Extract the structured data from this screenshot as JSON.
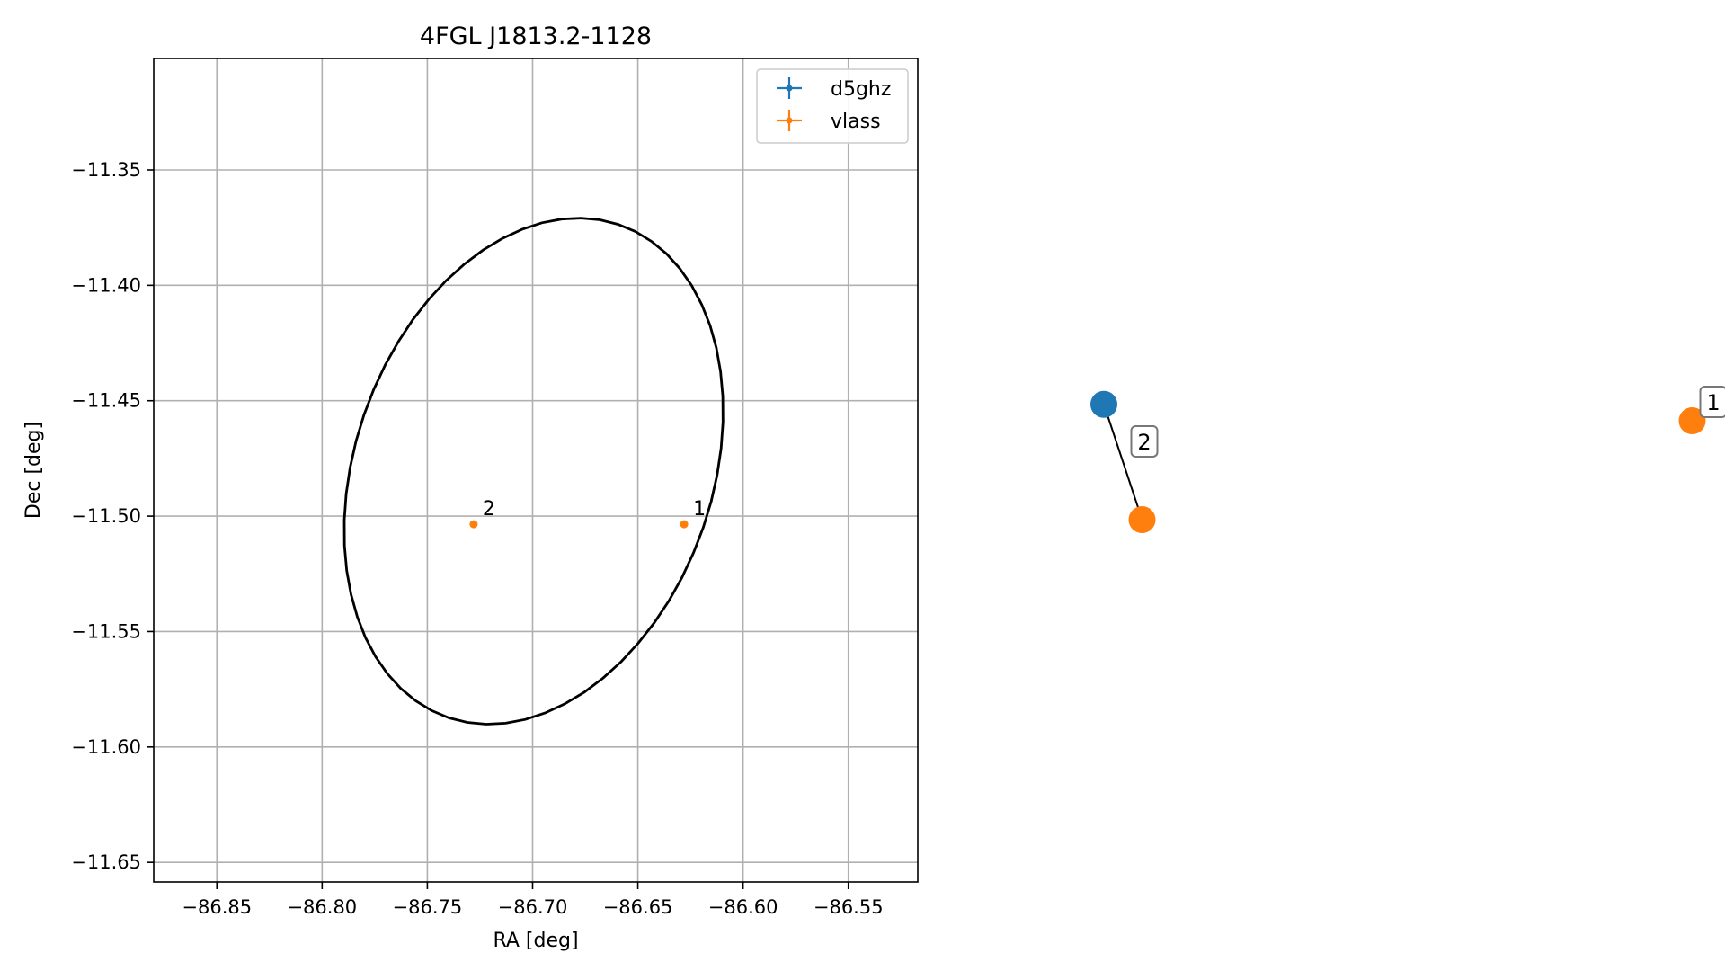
{
  "chart_data": [
    {
      "type": "scatter",
      "title": "4FGL J1813.2-1128",
      "xlabel": "RA [deg]",
      "ylabel": "Dec [deg]",
      "xlim": [
        -86.88,
        -86.517
      ],
      "ylim": [
        -11.6585,
        -11.3017
      ],
      "x_ticks": [
        -86.85,
        -86.8,
        -86.75,
        -86.7,
        -86.65,
        -86.6,
        -86.55
      ],
      "y_ticks": [
        -11.35,
        -11.4,
        -11.45,
        -11.5,
        -11.55,
        -11.6,
        -11.65
      ],
      "x_tick_labels": [
        "−86.85",
        "−86.80",
        "−86.75",
        "−86.70",
        "−86.65",
        "−86.60",
        "−86.55"
      ],
      "y_tick_labels": [
        "−11.35",
        "−11.40",
        "−11.45",
        "−11.50",
        "−11.55",
        "−11.60",
        "−11.65"
      ],
      "grid": true,
      "legend_position": "top-right",
      "legend": [
        {
          "name": "d5ghz",
          "color": "#1f77b4"
        },
        {
          "name": "vlass",
          "color": "#ff7f0e"
        }
      ],
      "series": [
        {
          "name": "d5ghz",
          "color": "#1f77b4",
          "points": []
        },
        {
          "name": "vlass",
          "color": "#ff7f0e",
          "points": [
            {
              "x": -86.628,
              "y": -11.5035,
              "label": "1"
            },
            {
              "x": -86.728,
              "y": -11.5035,
              "label": "2"
            }
          ]
        }
      ],
      "ellipse": {
        "center": [
          -86.6995,
          -11.4805
        ],
        "semi_axis_1": 0.1145,
        "semi_axis_2": 0.0838,
        "angle_deg": 65,
        "color": "#000000"
      }
    },
    {
      "type": "scatter",
      "axes_visible": false,
      "xlim": [
        0,
        1
      ],
      "ylim": [
        0,
        1
      ],
      "points": [
        {
          "name": "d5ghz",
          "x": 0.08,
          "y": 0.58,
          "color": "#1f77b4"
        },
        {
          "name": "vlass",
          "x": 0.13,
          "y": 0.44,
          "color": "#ff7f0e",
          "label": "2"
        },
        {
          "name": "vlass",
          "x": 0.85,
          "y": 0.56,
          "color": "#ff7f0e",
          "label": "1"
        }
      ],
      "connector": {
        "from": 0,
        "to": 1,
        "color": "#000000"
      }
    }
  ]
}
